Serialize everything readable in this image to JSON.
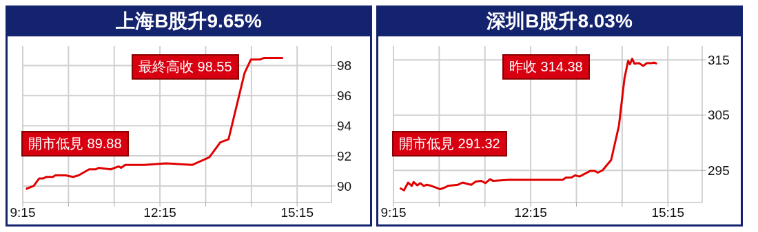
{
  "chart_data": [
    {
      "type": "line",
      "title": "上海B股升9.65%",
      "annotations": [
        "開市低見 89.88",
        "最終高收 98.55"
      ],
      "xlim": [
        9.25,
        16
      ],
      "xticks": [
        {
          "value": 9.25,
          "label": "9:15"
        },
        {
          "value": 10.25,
          "label": null
        },
        {
          "value": 11.25,
          "label": null
        },
        {
          "value": 12.25,
          "label": "12:15"
        },
        {
          "value": 13.25,
          "label": null
        },
        {
          "value": 14.25,
          "label": null
        },
        {
          "value": 15.25,
          "label": "15:15"
        }
      ],
      "ylim": [
        88.9,
        99.3
      ],
      "yticks": [
        90,
        92,
        94,
        96,
        98
      ],
      "grid": true,
      "marker": "none",
      "line_style": "solid",
      "series": [
        {
          "color": "#e00000",
          "x": [
            9.32,
            9.49,
            9.56,
            9.61,
            9.7,
            9.77,
            9.91,
            9.96,
            10.19,
            10.35,
            10.47,
            10.7,
            10.84,
            10.91,
            11.17,
            11.35,
            11.4,
            11.49,
            11.91,
            12.38,
            12.96,
            13.33,
            13.57,
            13.75,
            14.1,
            14.24,
            14.43,
            14.52,
            14.94
          ],
          "values": [
            89.8,
            90.0,
            90.3,
            90.5,
            90.5,
            90.6,
            90.6,
            90.7,
            90.7,
            90.6,
            90.7,
            91.1,
            91.1,
            91.2,
            91.1,
            91.3,
            91.2,
            91.4,
            91.4,
            91.5,
            91.4,
            91.9,
            92.9,
            93.1,
            97.5,
            98.4,
            98.4,
            98.5,
            98.5
          ]
        }
      ]
    },
    {
      "type": "line",
      "title": "深圳B股升8.03%",
      "annotations": [
        "開市低見 291.32",
        "昨收 314.38"
      ],
      "xlim": [
        9.25,
        16
      ],
      "xticks": [
        {
          "value": 9.25,
          "label": "9:15"
        },
        {
          "value": 10.25,
          "label": null
        },
        {
          "value": 11.25,
          "label": null
        },
        {
          "value": 12.25,
          "label": "12:15"
        },
        {
          "value": 13.25,
          "label": null
        },
        {
          "value": 14.25,
          "label": null
        },
        {
          "value": 15.25,
          "label": "15:15"
        }
      ],
      "ylim": [
        289.2,
        317.5
      ],
      "yticks": [
        295,
        305,
        315
      ],
      "grid": true,
      "marker": "none",
      "line_style": "solid",
      "series": [
        {
          "color": "#e00000",
          "x": [
            9.39,
            9.48,
            9.57,
            9.65,
            9.69,
            9.77,
            9.84,
            9.91,
            9.98,
            10.08,
            10.27,
            10.37,
            10.44,
            10.66,
            10.76,
            10.95,
            11.05,
            11.17,
            11.26,
            11.36,
            11.43,
            11.77,
            12.25,
            12.95,
            13.02,
            13.14,
            13.22,
            13.32,
            13.55,
            13.65,
            13.72,
            13.82,
            14.01,
            14.18,
            14.3,
            14.38,
            14.42,
            14.47,
            14.52,
            14.62,
            14.71,
            14.79,
            14.88,
            14.95,
            15.01
          ],
          "values": [
            291.8,
            291.4,
            292.8,
            292.2,
            292.9,
            292.3,
            292.7,
            292.2,
            292.4,
            292.2,
            291.6,
            291.9,
            292.2,
            292.4,
            292.8,
            292.4,
            293.0,
            293.1,
            292.7,
            293.4,
            293.1,
            293.3,
            293.3,
            293.3,
            293.7,
            293.7,
            294.1,
            293.9,
            294.9,
            294.9,
            294.6,
            295.0,
            296.9,
            303.1,
            311.6,
            314.8,
            314.2,
            315.2,
            314.3,
            314.4,
            313.9,
            314.4,
            314.4,
            314.5,
            314.3
          ]
        }
      ]
    }
  ]
}
